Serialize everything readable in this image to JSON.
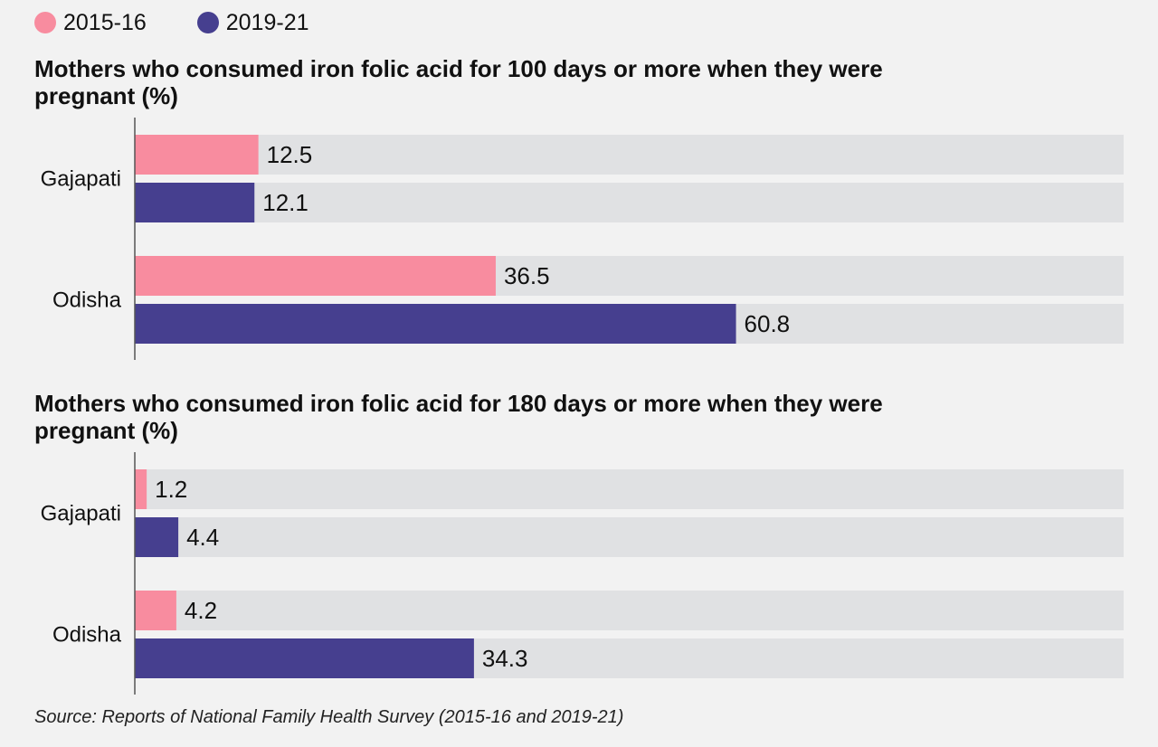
{
  "legend": [
    {
      "label": "2015-16",
      "color": "#f88c9f"
    },
    {
      "label": "2019-21",
      "color": "#463f8f"
    }
  ],
  "colors": {
    "track": "#e0e1e3",
    "axis": "#555555"
  },
  "chart_data": [
    {
      "type": "bar",
      "orientation": "horizontal",
      "title": "Mothers who consumed iron folic acid for 100 days or more when they were pregnant (%)",
      "categories": [
        "Gajapati",
        "Odisha"
      ],
      "series": [
        {
          "name": "2015-16",
          "values": [
            12.5,
            36.5
          ]
        },
        {
          "name": "2019-21",
          "values": [
            12.1,
            60.8
          ]
        }
      ],
      "xlim": [
        0,
        100
      ],
      "grid": false,
      "legend_position": "top-left"
    },
    {
      "type": "bar",
      "orientation": "horizontal",
      "title": "Mothers who consumed iron folic acid for 180 days or more when they were pregnant (%)",
      "categories": [
        "Gajapati",
        "Odisha"
      ],
      "series": [
        {
          "name": "2015-16",
          "values": [
            1.2,
            4.2
          ]
        },
        {
          "name": "2019-21",
          "values": [
            4.4,
            34.3
          ]
        }
      ],
      "xlim": [
        0,
        100
      ],
      "grid": false,
      "legend_position": "top-left"
    }
  ],
  "source": "Source: Reports of National Family Health Survey (2015-16 and 2019-21)"
}
